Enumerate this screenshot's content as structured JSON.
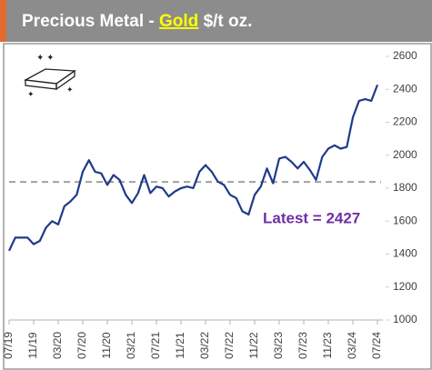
{
  "chart_data": {
    "type": "line",
    "title_parts": [
      "Precious Metal -",
      "Gold",
      "$/t oz."
    ],
    "categories": [
      "07/19",
      null,
      null,
      null,
      "11/19",
      null,
      null,
      null,
      "03/20",
      null,
      null,
      null,
      "07/20",
      null,
      null,
      null,
      "11/20",
      null,
      null,
      null,
      "03/21",
      null,
      null,
      null,
      "07/21",
      null,
      null,
      null,
      "11/21",
      null,
      null,
      null,
      "03/22",
      null,
      null,
      null,
      "07/22",
      null,
      null,
      null,
      "11/22",
      null,
      null,
      null,
      "03/23",
      null,
      null,
      null,
      "07/23",
      null,
      null,
      null,
      "11/23",
      null,
      null,
      null,
      "03/24",
      null,
      null,
      null,
      "07/24"
    ],
    "series": [
      {
        "color": "#1f3a8a",
        "values": [
          1420,
          1500,
          1500,
          1500,
          1460,
          1480,
          1560,
          1600,
          1580,
          1690,
          1720,
          1760,
          1900,
          1970,
          1900,
          1890,
          1820,
          1880,
          1850,
          1760,
          1710,
          1770,
          1880,
          1770,
          1810,
          1800,
          1750,
          1780,
          1800,
          1810,
          1800,
          1900,
          1940,
          1900,
          1840,
          1820,
          1760,
          1740,
          1660,
          1640,
          1760,
          1810,
          1920,
          1830,
          1980,
          1990,
          1960,
          1920,
          1960,
          1910,
          1850,
          1990,
          2040,
          2060,
          2040,
          2050,
          2230,
          2330,
          2340,
          2330,
          2427
        ]
      }
    ],
    "ylim": [
      1000,
      2600
    ],
    "yticks": [
      1000,
      1200,
      1400,
      1600,
      1800,
      2000,
      2200,
      2400,
      2600
    ],
    "reference_line": {
      "value": 1838,
      "color": "#a0a0a0"
    },
    "annotation": {
      "text": "Latest = 2427",
      "color": "#7030a0"
    }
  }
}
